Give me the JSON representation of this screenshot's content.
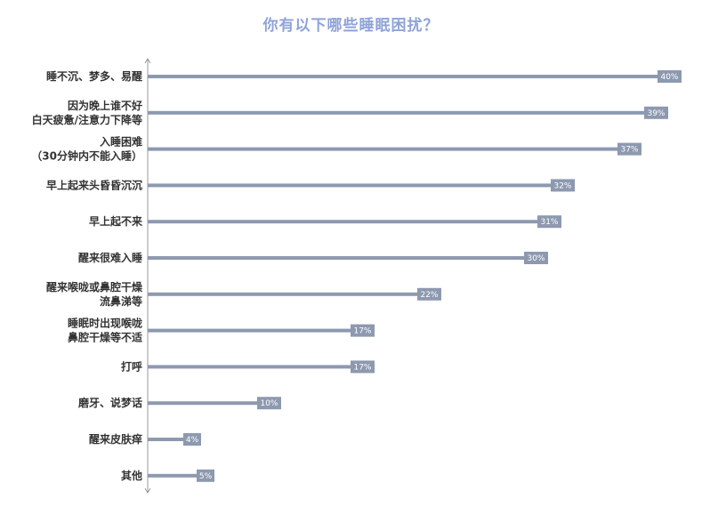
{
  "chart_data": {
    "type": "bar",
    "orientation": "horizontal",
    "title": "你有以下哪些睡眠困扰？",
    "xlabel": "",
    "ylabel": "",
    "xlim": [
      0,
      40
    ],
    "grid": false,
    "categories": [
      [
        "睡不沉、梦多、易醒"
      ],
      [
        "因为晚上谁不好",
        "白天疲惫/注意力下降等"
      ],
      [
        "入睡困难",
        "（30分钟内不能入睡）"
      ],
      [
        "早上起来头昏昏沉沉"
      ],
      [
        "早上起不来"
      ],
      [
        "醒来很难入睡"
      ],
      [
        "醒来喉咙或鼻腔干燥",
        "流鼻涕等"
      ],
      [
        "睡眠时出现喉咙",
        "鼻腔干燥等不适"
      ],
      [
        "打呼"
      ],
      [
        "磨牙、说梦话"
      ],
      [
        "醒来皮肤痒"
      ],
      [
        "其他"
      ]
    ],
    "values": [
      40,
      39,
      37,
      32,
      31,
      30,
      22,
      17,
      17,
      10,
      4,
      5
    ],
    "value_labels": [
      "40%",
      "39%",
      "37%",
      "32%",
      "31%",
      "30%",
      "22%",
      "17%",
      "17%",
      "10%",
      "4%",
      "5%"
    ],
    "colors": {
      "bar": "#8d99af",
      "title": "#8fa3d9",
      "axis": "#999999",
      "label": "#333333",
      "value_text": "#ffffff"
    }
  }
}
